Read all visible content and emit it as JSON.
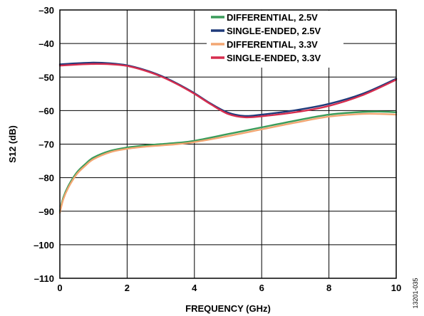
{
  "chart_data": {
    "type": "line",
    "xlabel": "FREQUENCY (GHz)",
    "ylabel": "S12 (dB)",
    "xlim": [
      0,
      10
    ],
    "ylim": [
      -110,
      -30
    ],
    "x_ticks": [
      "0",
      "2",
      "4",
      "6",
      "8",
      "10"
    ],
    "y_ticks": [
      "–30",
      "–40",
      "–50",
      "–60",
      "–70",
      "–80",
      "–90",
      "–100",
      "–110"
    ],
    "grid": true,
    "legend_position": "top-right",
    "figure_id": "13201-035",
    "series": [
      {
        "name": "DIFFERENTIAL, 2.5V",
        "color": "#3a9c5a",
        "x": [
          0,
          0.1,
          0.25,
          0.5,
          0.75,
          1,
          1.5,
          2,
          2.5,
          3,
          3.5,
          4,
          5,
          6,
          7,
          8,
          9,
          9.5,
          10
        ],
        "y": [
          -90,
          -86,
          -82.5,
          -78.5,
          -76,
          -74,
          -72,
          -71,
          -70.4,
          -70,
          -69.6,
          -69,
          -67,
          -65,
          -63,
          -61.2,
          -60.4,
          -60.3,
          -60.5
        ]
      },
      {
        "name": "SINGLE-ENDED, 2.5V",
        "color": "#1f3a7a",
        "x": [
          0,
          0.5,
          1,
          1.5,
          2,
          2.5,
          3,
          3.5,
          4,
          4.5,
          5,
          5.5,
          6,
          7,
          8,
          9,
          10
        ],
        "y": [
          -46.2,
          -45.9,
          -45.7,
          -45.9,
          -46.5,
          -47.8,
          -49.6,
          -52,
          -54.8,
          -58,
          -60.6,
          -61.6,
          -61.2,
          -59.9,
          -58,
          -55,
          -50.5
        ]
      },
      {
        "name": "DIFFERENTIAL, 3.3V",
        "color": "#f2a672",
        "x": [
          0,
          0.1,
          0.25,
          0.5,
          0.75,
          1,
          1.5,
          2,
          2.5,
          3,
          3.5,
          4,
          5,
          6,
          7,
          8,
          9,
          9.5,
          10
        ],
        "y": [
          -90.5,
          -86.5,
          -83,
          -79,
          -76.5,
          -74.5,
          -72.4,
          -71.4,
          -70.8,
          -70.4,
          -70,
          -69.4,
          -67.6,
          -65.6,
          -63.6,
          -61.8,
          -61,
          -61,
          -61.2
        ]
      },
      {
        "name": "SINGLE-ENDED, 3.3V",
        "color": "#d62d4e",
        "x": [
          0,
          0.5,
          1,
          1.5,
          2,
          2.5,
          3,
          3.5,
          4,
          4.5,
          5,
          5.5,
          6,
          7,
          8,
          9,
          10
        ],
        "y": [
          -46.6,
          -46.3,
          -46.1,
          -46.2,
          -46.7,
          -48,
          -49.8,
          -52.2,
          -55,
          -58.2,
          -61,
          -62,
          -61.7,
          -60.5,
          -58.6,
          -55.4,
          -50.8
        ]
      }
    ]
  }
}
